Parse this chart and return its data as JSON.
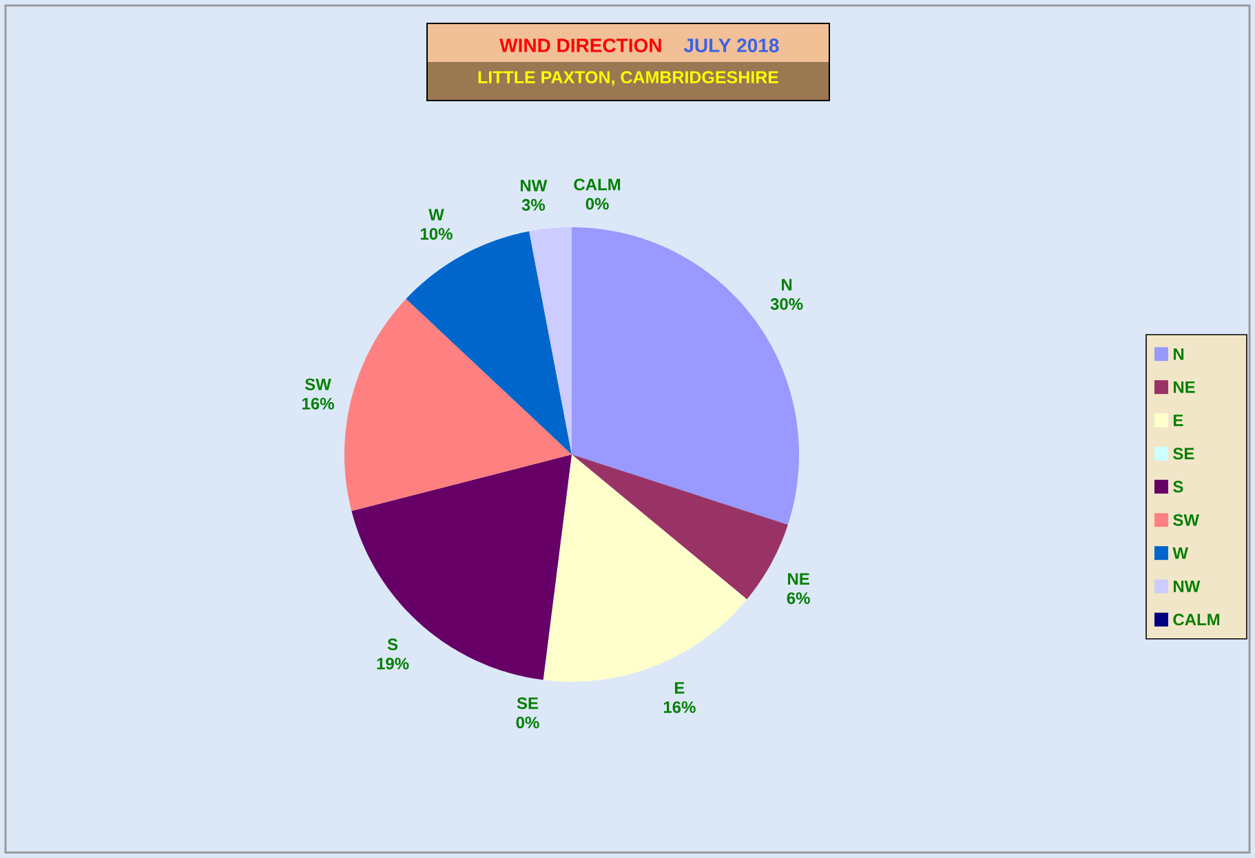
{
  "chart_data": {
    "type": "pie",
    "title": "WIND DIRECTION",
    "subtitle": "JULY 2018",
    "annotations": [
      "LITTLE PAXTON, CAMBRIDGESHIRE"
    ],
    "categories": [
      "N",
      "NE",
      "E",
      "SE",
      "S",
      "SW",
      "W",
      "NW",
      "CALM"
    ],
    "values": [
      30,
      6,
      16,
      0,
      19,
      16,
      10,
      3,
      0
    ],
    "value_labels": [
      "30%",
      "6%",
      "16%",
      "0%",
      "19%",
      "16%",
      "10%",
      "3%",
      "0%"
    ],
    "colors": [
      "#9999ff",
      "#993366",
      "#ffffcc",
      "#ccffff",
      "#660066",
      "#ff8080",
      "#0066cc",
      "#ccccff",
      "#000080"
    ],
    "legend": "right"
  }
}
